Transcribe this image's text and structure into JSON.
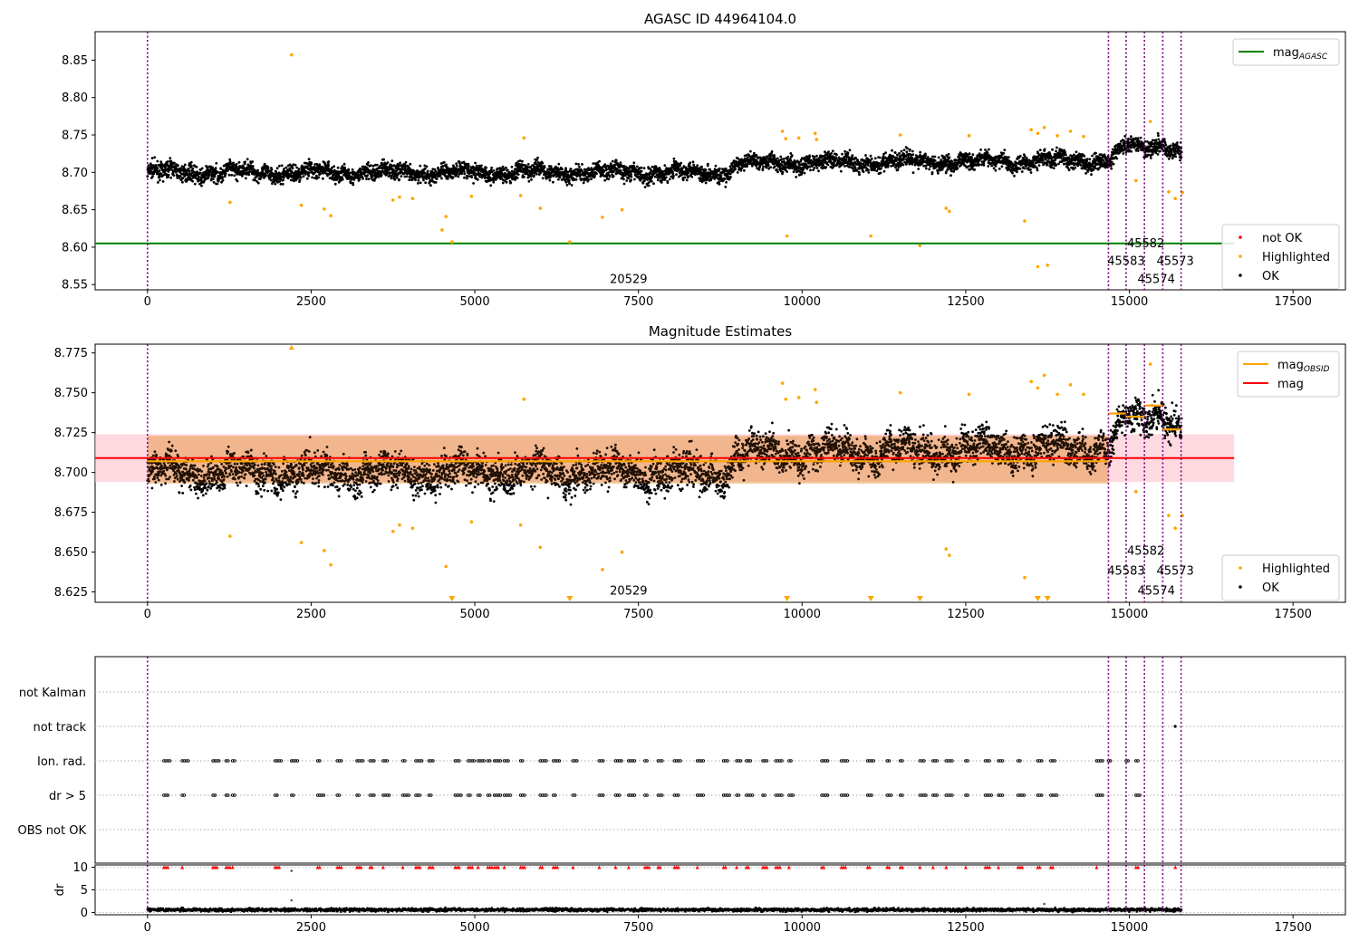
{
  "figure": {
    "title": "AGASC ID 44964104.0",
    "colors": {
      "ok": "#000000",
      "highlighted": "#ffa500",
      "not_ok": "#ff0000",
      "mag_agasc": "#008000",
      "mag": "#ff0000",
      "mag_obsid": "#ffa500",
      "obs_boundary": "#800080",
      "mag_band": "#ffc0cb"
    }
  },
  "chart_data": [
    {
      "type": "scatter",
      "name": "top-panel",
      "title": "AGASC ID 44964104.0",
      "xlabel": "",
      "ylabel": "",
      "xlim": [
        -800,
        18300
      ],
      "ylim": [
        8.543,
        8.888
      ],
      "xticks": [
        0,
        2500,
        5000,
        7500,
        10000,
        12500,
        15000,
        17500
      ],
      "xtick_labels": [
        "0",
        "2500",
        "5000",
        "7500",
        "10000",
        "12500",
        "15000",
        "17500"
      ],
      "yticks": [
        8.55,
        8.6,
        8.65,
        8.7,
        8.75,
        8.8,
        8.85
      ],
      "ytick_labels": [
        "8.55",
        "8.60",
        "8.65",
        "8.70",
        "8.75",
        "8.80",
        "8.85"
      ],
      "obs_lines_x": [
        0,
        14680,
        14950,
        15230,
        15510,
        15790
      ],
      "obs_labels": [
        {
          "text": "20529",
          "x": 7350,
          "y": 8.557
        },
        {
          "text": "45582",
          "x": 15250,
          "y": 8.605
        },
        {
          "text": "45583",
          "x": 14950,
          "y": 8.581
        },
        {
          "text": "45573",
          "x": 15700,
          "y": 8.581
        },
        {
          "text": "45574",
          "x": 15410,
          "y": 8.557
        }
      ],
      "mag_agasc": {
        "x": [
          -800,
          16600
        ],
        "y": 8.605
      },
      "legend_upper": {
        "position": "top-right",
        "entries": [
          {
            "label": "mag",
            "sub": "AGASC",
            "kind": "line",
            "color": "#008000"
          }
        ]
      },
      "legend_lower": {
        "position": "bottom-right",
        "entries": [
          {
            "label": "not OK",
            "kind": "dot",
            "color": "#ff0000"
          },
          {
            "label": "Highlighted",
            "kind": "dot",
            "color": "#ffa500"
          },
          {
            "label": "OK",
            "kind": "dot",
            "color": "#000000"
          }
        ]
      },
      "highlighted": [
        [
          2200,
          8.857
        ],
        [
          1260,
          8.66
        ],
        [
          2350,
          8.656
        ],
        [
          2700,
          8.651
        ],
        [
          2800,
          8.642
        ],
        [
          3750,
          8.663
        ],
        [
          3850,
          8.667
        ],
        [
          4050,
          8.665
        ],
        [
          4500,
          8.623
        ],
        [
          4560,
          8.641
        ],
        [
          4650,
          8.607
        ],
        [
          4950,
          8.668
        ],
        [
          5700,
          8.669
        ],
        [
          5750,
          8.746
        ],
        [
          6000,
          8.652
        ],
        [
          6450,
          8.607
        ],
        [
          6950,
          8.64
        ],
        [
          7250,
          8.65
        ],
        [
          9700,
          8.755
        ],
        [
          9750,
          8.745
        ],
        [
          9770,
          8.615
        ],
        [
          9950,
          8.746
        ],
        [
          10200,
          8.752
        ],
        [
          10220,
          8.744
        ],
        [
          11050,
          8.615
        ],
        [
          11500,
          8.75
        ],
        [
          11800,
          8.602
        ],
        [
          12200,
          8.652
        ],
        [
          12250,
          8.648
        ],
        [
          12550,
          8.749
        ],
        [
          13400,
          8.635
        ],
        [
          13600,
          8.574
        ],
        [
          13750,
          8.576
        ],
        [
          13500,
          8.757
        ],
        [
          13600,
          8.752
        ],
        [
          13700,
          8.76
        ],
        [
          13900,
          8.749
        ],
        [
          14100,
          8.755
        ],
        [
          14300,
          8.748
        ],
        [
          15100,
          8.689
        ],
        [
          15320,
          8.768
        ],
        [
          15600,
          8.674
        ],
        [
          15700,
          8.665
        ],
        [
          15810,
          8.673
        ]
      ],
      "ok_series": {
        "x_range": [
          0,
          15800
        ],
        "baseline": [
          [
            0,
            8.7
          ],
          [
            8900,
            8.7
          ],
          [
            9000,
            8.712
          ],
          [
            14680,
            8.716
          ],
          [
            14950,
            8.734
          ],
          [
            15230,
            8.733
          ],
          [
            15510,
            8.74
          ],
          [
            15800,
            8.726
          ]
        ],
        "spread": 0.012
      }
    },
    {
      "type": "scatter",
      "name": "middle-panel",
      "title": "Magnitude Estimates",
      "xlabel": "",
      "ylabel": "",
      "xlim": [
        -800,
        18300
      ],
      "ylim": [
        8.6185,
        8.7805
      ],
      "xticks": [
        0,
        2500,
        5000,
        7500,
        10000,
        12500,
        15000,
        17500
      ],
      "xtick_labels": [
        "0",
        "2500",
        "5000",
        "7500",
        "10000",
        "12500",
        "15000",
        "17500"
      ],
      "yticks": [
        8.625,
        8.65,
        8.675,
        8.7,
        8.725,
        8.75,
        8.775
      ],
      "ytick_labels": [
        "8.625",
        "8.650",
        "8.675",
        "8.700",
        "8.725",
        "8.750",
        "8.775"
      ],
      "obs_lines_x": [
        0,
        14680,
        14950,
        15230,
        15510,
        15790
      ],
      "obs_labels": [
        {
          "text": "20529",
          "x": 7350,
          "y": 8.6255
        },
        {
          "text": "45582",
          "x": 15250,
          "y": 8.6505
        },
        {
          "text": "45583",
          "x": 14950,
          "y": 8.638
        },
        {
          "text": "45573",
          "x": 15700,
          "y": 8.638
        },
        {
          "text": "45574",
          "x": 15410,
          "y": 8.6255
        }
      ],
      "mag": {
        "x": [
          -800,
          16600
        ],
        "y": 8.709,
        "band": [
          8.694,
          8.724
        ]
      },
      "mag_obsid_segments": [
        {
          "x": [
            0,
            14680
          ],
          "y": 8.707
        },
        {
          "x": [
            14680,
            14950
          ],
          "y": 8.737
        },
        {
          "x": [
            14950,
            15230
          ],
          "y": 8.735
        },
        {
          "x": [
            15230,
            15510
          ],
          "y": 8.742
        },
        {
          "x": [
            15510,
            15790
          ],
          "y": 8.727
        }
      ],
      "obsid_band": {
        "x": [
          0,
          14680
        ],
        "y": [
          8.693,
          8.723
        ]
      },
      "legend_upper": {
        "position": "top-right",
        "entries": [
          {
            "label": "mag",
            "sub": "OBSID",
            "kind": "line",
            "color": "#ffa500"
          },
          {
            "label": "mag",
            "sub": "",
            "kind": "line",
            "color": "#ff0000"
          }
        ]
      },
      "legend_lower": {
        "position": "bottom-right",
        "entries": [
          {
            "label": "Highlighted",
            "kind": "dot",
            "color": "#ffa500"
          },
          {
            "label": "OK",
            "kind": "dot",
            "color": "#000000"
          }
        ]
      },
      "highlighted": [
        [
          1260,
          8.66
        ],
        [
          2350,
          8.656
        ],
        [
          2700,
          8.651
        ],
        [
          2800,
          8.642
        ],
        [
          3750,
          8.663
        ],
        [
          3850,
          8.667
        ],
        [
          4050,
          8.665
        ],
        [
          4560,
          8.641
        ],
        [
          4950,
          8.669
        ],
        [
          5700,
          8.667
        ],
        [
          5750,
          8.746
        ],
        [
          6000,
          8.653
        ],
        [
          6950,
          8.639
        ],
        [
          7250,
          8.65
        ],
        [
          9700,
          8.756
        ],
        [
          9750,
          8.746
        ],
        [
          9950,
          8.747
        ],
        [
          10200,
          8.752
        ],
        [
          10220,
          8.744
        ],
        [
          11500,
          8.75
        ],
        [
          12200,
          8.652
        ],
        [
          12250,
          8.648
        ],
        [
          12550,
          8.749
        ],
        [
          13400,
          8.634
        ],
        [
          13500,
          8.757
        ],
        [
          13600,
          8.753
        ],
        [
          13700,
          8.761
        ],
        [
          13900,
          8.749
        ],
        [
          14100,
          8.755
        ],
        [
          14300,
          8.749
        ],
        [
          15100,
          8.688
        ],
        [
          15320,
          8.768
        ],
        [
          15600,
          8.673
        ],
        [
          15700,
          8.665
        ],
        [
          15810,
          8.673
        ]
      ],
      "clipped_markers": [
        {
          "x": 2200,
          "dir": "up"
        },
        {
          "x": 4650,
          "dir": "down"
        },
        {
          "x": 6450,
          "dir": "down"
        },
        {
          "x": 9770,
          "dir": "down"
        },
        {
          "x": 11050,
          "dir": "down"
        },
        {
          "x": 11800,
          "dir": "down"
        },
        {
          "x": 13600,
          "dir": "down"
        },
        {
          "x": 13750,
          "dir": "down"
        }
      ],
      "ok_series": {
        "x_range": [
          0,
          15800
        ],
        "baseline": [
          [
            0,
            8.7
          ],
          [
            8900,
            8.7
          ],
          [
            9000,
            8.712
          ],
          [
            14680,
            8.716
          ],
          [
            14950,
            8.734
          ],
          [
            15230,
            8.733
          ],
          [
            15510,
            8.74
          ],
          [
            15800,
            8.726
          ]
        ],
        "spread": 0.012
      }
    },
    {
      "type": "scatter",
      "name": "flags-panel",
      "xlim": [
        -800,
        18300
      ],
      "categories": [
        "OBS not OK",
        "dr > 5",
        "Ion. rad.",
        "not track",
        "not Kalman"
      ],
      "obs_lines_x": [
        0,
        14680,
        14950,
        15230,
        15510,
        15790
      ],
      "flag_clusters_x": [
        250,
        530,
        1000,
        1200,
        1300,
        1950,
        2200,
        2600,
        2900,
        3200,
        3400,
        3600,
        3900,
        4100,
        4300,
        4700,
        4900,
        5050,
        5200,
        5300,
        5450,
        5700,
        6000,
        6200,
        6500,
        6900,
        7150,
        7350,
        7600,
        7800,
        8050,
        8400,
        8800,
        9000,
        9150,
        9400,
        9600,
        9800,
        10300,
        10600,
        11000,
        11300,
        11500,
        11800,
        12000,
        12200,
        12500,
        12800,
        13000,
        13300,
        13600,
        13800,
        14500,
        15100
      ],
      "ion_rad_extra_x": [
        14680,
        14950
      ],
      "not_track_x": [
        15700
      ]
    },
    {
      "type": "scatter",
      "name": "dr-panel",
      "xlim": [
        -800,
        18300
      ],
      "ylim": [
        -0.5,
        10.5
      ],
      "ylabel": "dr",
      "xticks": [
        0,
        2500,
        5000,
        7500,
        10000,
        12500,
        15000,
        17500
      ],
      "xtick_labels": [
        "0",
        "2500",
        "5000",
        "7500",
        "10000",
        "12500",
        "15000",
        "17500"
      ],
      "yticks": [
        0,
        5,
        10
      ],
      "ytick_labels": [
        "0",
        "5",
        "10"
      ],
      "obs_lines_x": [
        0,
        14680,
        14950,
        15230,
        15510,
        15790
      ],
      "dr_ok": {
        "x_range": [
          0,
          15800
        ],
        "mean": 0.6,
        "spread": 0.5
      },
      "outliers": [
        [
          2200,
          2.7
        ],
        [
          2200,
          9.2
        ],
        [
          13700,
          1.9
        ]
      ],
      "red_markers_y": 10,
      "red_markers_x": [
        250,
        530,
        1000,
        1200,
        1300,
        1950,
        2600,
        2900,
        3200,
        3400,
        3600,
        3900,
        4100,
        4300,
        4700,
        4900,
        5050,
        5200,
        5300,
        5450,
        5700,
        6000,
        6200,
        6500,
        6900,
        7150,
        7350,
        7600,
        7800,
        8050,
        8400,
        8800,
        9000,
        9150,
        9400,
        9600,
        9800,
        10300,
        10600,
        11000,
        11300,
        11500,
        11800,
        12000,
        12200,
        12500,
        12800,
        13000,
        13300,
        13600,
        13800,
        14500,
        15100,
        15700
      ]
    }
  ]
}
